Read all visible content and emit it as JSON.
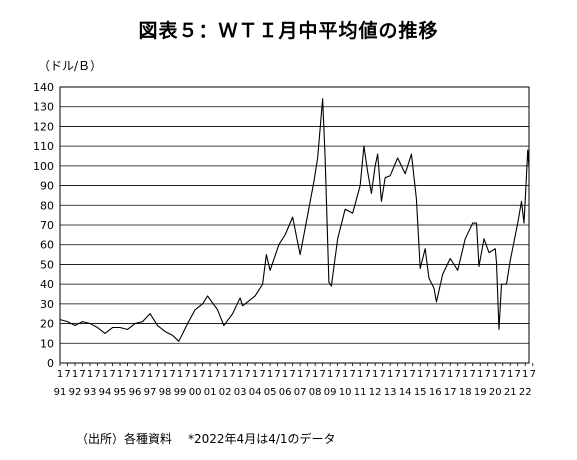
{
  "title": "図表５：ＷＴＩ月中平均値の推移",
  "unit_label": "（ドル/Ｂ）",
  "source_label": "（出所）各種資料",
  "note": "*2022年4月は4/1のデータ",
  "chart_data": {
    "type": "line",
    "ylabel": "（ドル/Ｂ）",
    "ylim": [
      0,
      140
    ],
    "yticks": [
      0,
      10,
      20,
      30,
      40,
      50,
      60,
      70,
      80,
      90,
      100,
      110,
      120,
      130,
      140
    ],
    "grid": "horizontal",
    "series_color": "#000000",
    "month_labels": [
      "1",
      "7",
      "1",
      "7",
      "1",
      "7",
      "1",
      "7",
      "1",
      "7",
      "1",
      "7",
      "1",
      "7",
      "1",
      "7",
      "1",
      "7",
      "1",
      "7",
      "1",
      "7",
      "1",
      "7",
      "1",
      "7",
      "1",
      "7",
      "1",
      "7",
      "1",
      "7",
      "1",
      "7",
      "1",
      "7",
      "1",
      "7",
      "1",
      "7",
      "1",
      "7",
      "1",
      "7",
      "1",
      "7",
      "1",
      "7",
      "1",
      "7",
      "1",
      "7",
      "1",
      "7",
      "1",
      "7",
      "1",
      "7",
      "1",
      "7",
      "1",
      "7",
      "1",
      "7"
    ],
    "year_labels": [
      "91",
      "92",
      "93",
      "94",
      "95",
      "96",
      "97",
      "98",
      "99",
      "00",
      "01",
      "02",
      "03",
      "04",
      "05",
      "06",
      "07",
      "08",
      "09",
      "10",
      "11",
      "12",
      "13",
      "14",
      "15",
      "16",
      "17",
      "18",
      "19",
      "20",
      "21",
      "22"
    ],
    "x": [
      "1991-01",
      "1991-07",
      "1992-01",
      "1992-07",
      "1993-01",
      "1993-07",
      "1994-01",
      "1994-07",
      "1995-01",
      "1995-07",
      "1996-01",
      "1996-07",
      "1997-01",
      "1997-07",
      "1998-01",
      "1998-07",
      "1998-12",
      "1999-07",
      "2000-01",
      "2000-07",
      "2000-11",
      "2001-07",
      "2001-12",
      "2002-07",
      "2003-01",
      "2003-03",
      "2003-07",
      "2004-01",
      "2004-07",
      "2004-10",
      "2005-01",
      "2005-08",
      "2006-01",
      "2006-07",
      "2007-01",
      "2007-07",
      "2007-12",
      "2008-03",
      "2008-07",
      "2008-09",
      "2008-12",
      "2009-02",
      "2009-07",
      "2010-01",
      "2010-07",
      "2011-01",
      "2011-04",
      "2011-07",
      "2011-10",
      "2012-01",
      "2012-03",
      "2012-06",
      "2012-09",
      "2013-01",
      "2013-07",
      "2014-01",
      "2014-06",
      "2014-10",
      "2015-01",
      "2015-05",
      "2015-08",
      "2015-12",
      "2016-02",
      "2016-07",
      "2017-01",
      "2017-07",
      "2018-01",
      "2018-07",
      "2018-10",
      "2018-12",
      "2019-04",
      "2019-08",
      "2020-01",
      "2020-02",
      "2020-04",
      "2020-06",
      "2020-10",
      "2021-01",
      "2021-07",
      "2021-10",
      "2021-12",
      "2022-01",
      "2022-03",
      "2022-04"
    ],
    "values": [
      22,
      21,
      19,
      21,
      20,
      18,
      15,
      18,
      18,
      17,
      20,
      21,
      25,
      19,
      16,
      14,
      11,
      20,
      27,
      30,
      34,
      27,
      19,
      25,
      33,
      29,
      31,
      34,
      40,
      55,
      47,
      60,
      65,
      74,
      55,
      75,
      92,
      104,
      134,
      104,
      41,
      39,
      63,
      78,
      76,
      90,
      110,
      97,
      86,
      100,
      106,
      82,
      94,
      95,
      104,
      96,
      106,
      83,
      48,
      58,
      43,
      38,
      31,
      45,
      53,
      47,
      63,
      71,
      71,
      49,
      63,
      56,
      58,
      51,
      17,
      40,
      40,
      52,
      71,
      82,
      71,
      83,
      108,
      99
    ]
  }
}
